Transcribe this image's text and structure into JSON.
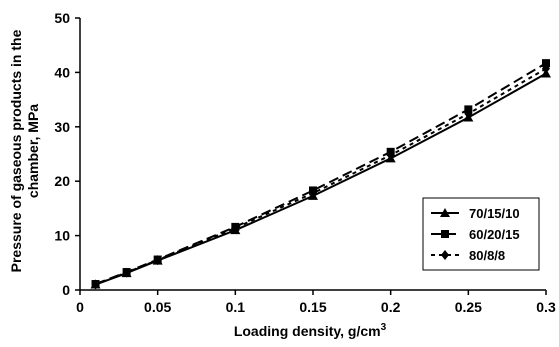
{
  "chart_data": {
    "type": "line",
    "xlabel": "Loading density, g/cm",
    "xlabel_superscript": "3",
    "ylabel": "Pressure of gaseous products in the chamber, MPa",
    "ylabel_line1": "Pressure of gaseous products in the",
    "ylabel_line2": "chamber, MPa",
    "xlim": [
      0,
      0.3
    ],
    "ylim": [
      0,
      50
    ],
    "x_ticks": [
      0,
      0.05,
      0.1,
      0.15,
      0.2,
      0.25,
      0.3
    ],
    "x_tick_labels": [
      "0",
      "0.05",
      "0.1",
      "0.15",
      "0.2",
      "0.25",
      "0.3"
    ],
    "y_ticks": [
      0,
      10,
      20,
      30,
      40,
      50
    ],
    "y_tick_labels": [
      "0",
      "10",
      "20",
      "30",
      "40",
      "50"
    ],
    "grid": false,
    "legend_position": "bottom-right",
    "x": [
      0.01,
      0.03,
      0.05,
      0.1,
      0.15,
      0.2,
      0.25,
      0.3
    ],
    "series": [
      {
        "name": "70/15/10",
        "marker": "triangle",
        "dash": "solid",
        "values": [
          1.0,
          3.1,
          5.4,
          11.0,
          17.3,
          24.2,
          31.7,
          39.8
        ]
      },
      {
        "name": "60/20/15",
        "marker": "square",
        "dash": "dash",
        "values": [
          1.1,
          3.3,
          5.6,
          11.6,
          18.3,
          25.4,
          33.2,
          41.7
        ]
      },
      {
        "name": "80/8/8",
        "marker": "diamond",
        "dash": "shortdash",
        "values": [
          1.0,
          3.2,
          5.5,
          11.4,
          17.8,
          24.8,
          32.4,
          40.7
        ]
      }
    ]
  }
}
